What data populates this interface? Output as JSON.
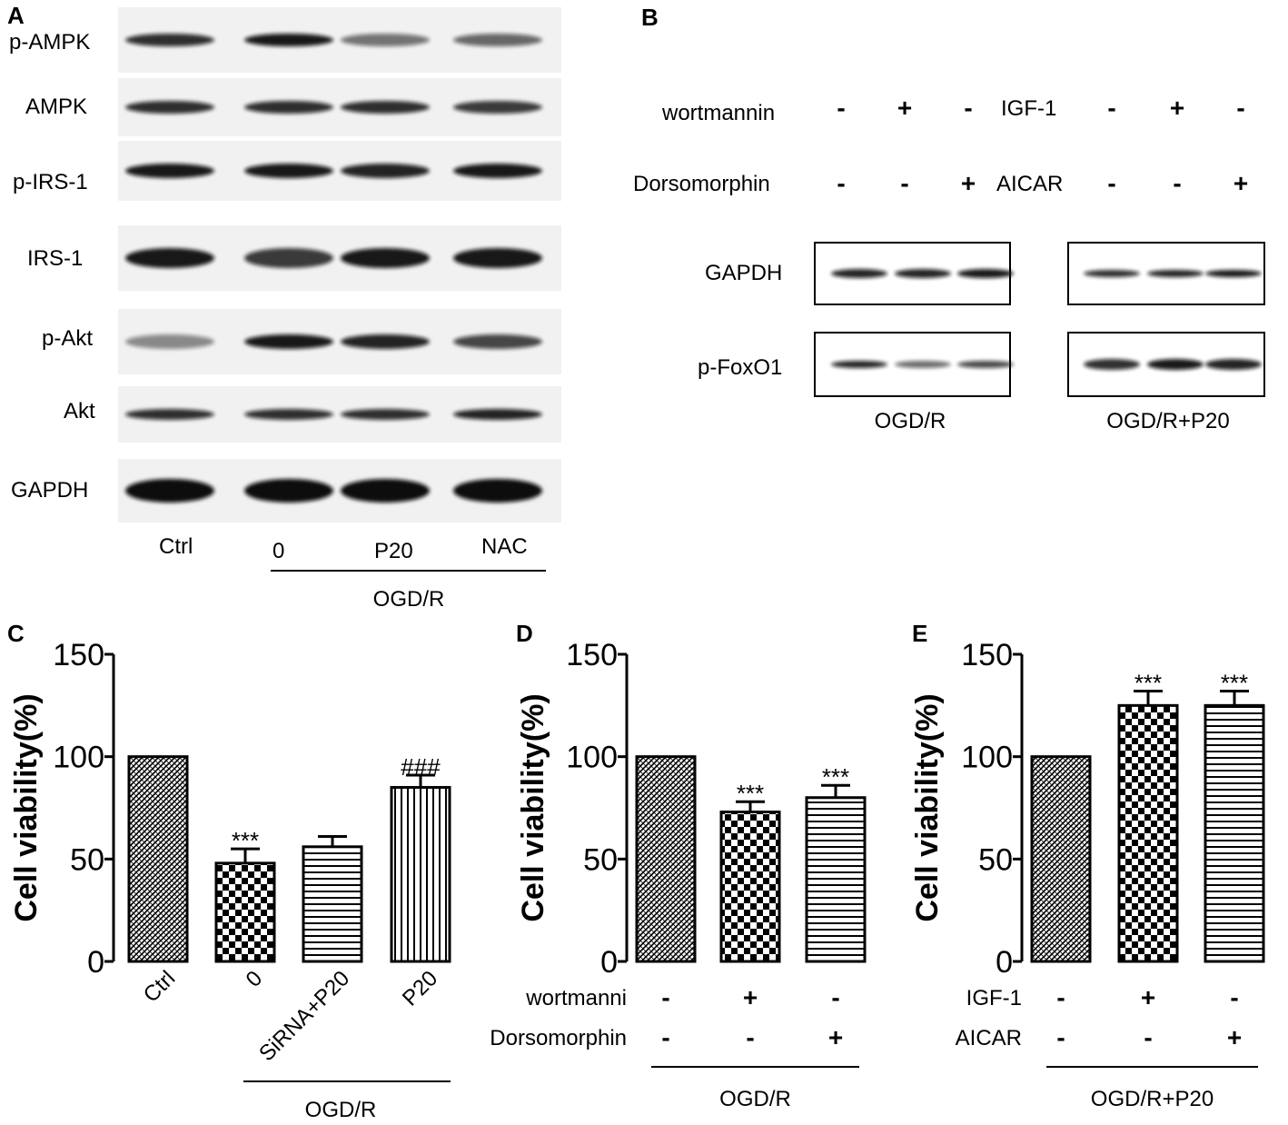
{
  "panel_letters": [
    "A",
    "B",
    "C",
    "D",
    "E"
  ],
  "blot_a": {
    "rows": [
      "p-AMPK",
      "AMPK",
      "p-IRS-1",
      "IRS-1",
      "p-Akt",
      "Akt",
      "GAPDH"
    ],
    "lanes": [
      "Ctrl",
      "0",
      "P20",
      "NAC"
    ],
    "group_label": "OGD/R"
  },
  "blot_b": {
    "treatments_left": [
      {
        "name": "wortmannin",
        "signs": [
          "-",
          "+",
          "-"
        ]
      },
      {
        "name": "Dorsomorphin",
        "signs": [
          "-",
          "-",
          "+"
        ]
      }
    ],
    "treatments_right": [
      {
        "name": "IGF-1",
        "signs": [
          "-",
          "+",
          "-"
        ]
      },
      {
        "name": "AICAR",
        "signs": [
          "-",
          "-",
          "+"
        ]
      }
    ],
    "rows": [
      "GAPDH",
      "p-FoxO1"
    ],
    "group_labels": [
      "OGD/R",
      "OGD/R+P20"
    ]
  },
  "chart_data": [
    {
      "panel": "C",
      "type": "bar",
      "ylabel": "Cell viability(%)",
      "ylim": [
        0,
        150
      ],
      "yticks": [
        0,
        50,
        100,
        150
      ],
      "categories": [
        "Ctrl",
        "0",
        "SiRNA+P20",
        "P20"
      ],
      "values": [
        100,
        48,
        56,
        85
      ],
      "errors": [
        0,
        7,
        5,
        6
      ],
      "significance": [
        "",
        "***",
        "",
        "###"
      ],
      "patterns": [
        "fine",
        "checker",
        "hstripe",
        "vstripe"
      ],
      "group_label": "OGD/R"
    },
    {
      "panel": "D",
      "type": "bar",
      "ylabel": "Cell viability(%)",
      "ylim": [
        0,
        150
      ],
      "yticks": [
        0,
        50,
        100,
        150
      ],
      "values": [
        100,
        73,
        80
      ],
      "errors": [
        0,
        5,
        6
      ],
      "significance": [
        "",
        "***",
        "***"
      ],
      "patterns": [
        "fine",
        "checker",
        "hstripe"
      ],
      "treatments": [
        {
          "name": "wortmanni",
          "signs": [
            "-",
            "+",
            "-"
          ]
        },
        {
          "name": "Dorsomorphin",
          "signs": [
            "-",
            "-",
            "+"
          ]
        }
      ],
      "group_label": "OGD/R"
    },
    {
      "panel": "E",
      "type": "bar",
      "ylabel": "Cell viability(%)",
      "ylim": [
        0,
        150
      ],
      "yticks": [
        0,
        50,
        100,
        150
      ],
      "values": [
        100,
        125,
        125
      ],
      "errors": [
        0,
        7,
        7
      ],
      "significance": [
        "",
        "***",
        "***"
      ],
      "patterns": [
        "fine",
        "checker",
        "hstripe"
      ],
      "treatments": [
        {
          "name": "IGF-1",
          "signs": [
            "-",
            "+",
            "-"
          ]
        },
        {
          "name": "AICAR",
          "signs": [
            "-",
            "-",
            "+"
          ]
        }
      ],
      "group_label": "OGD/R+P20"
    }
  ]
}
